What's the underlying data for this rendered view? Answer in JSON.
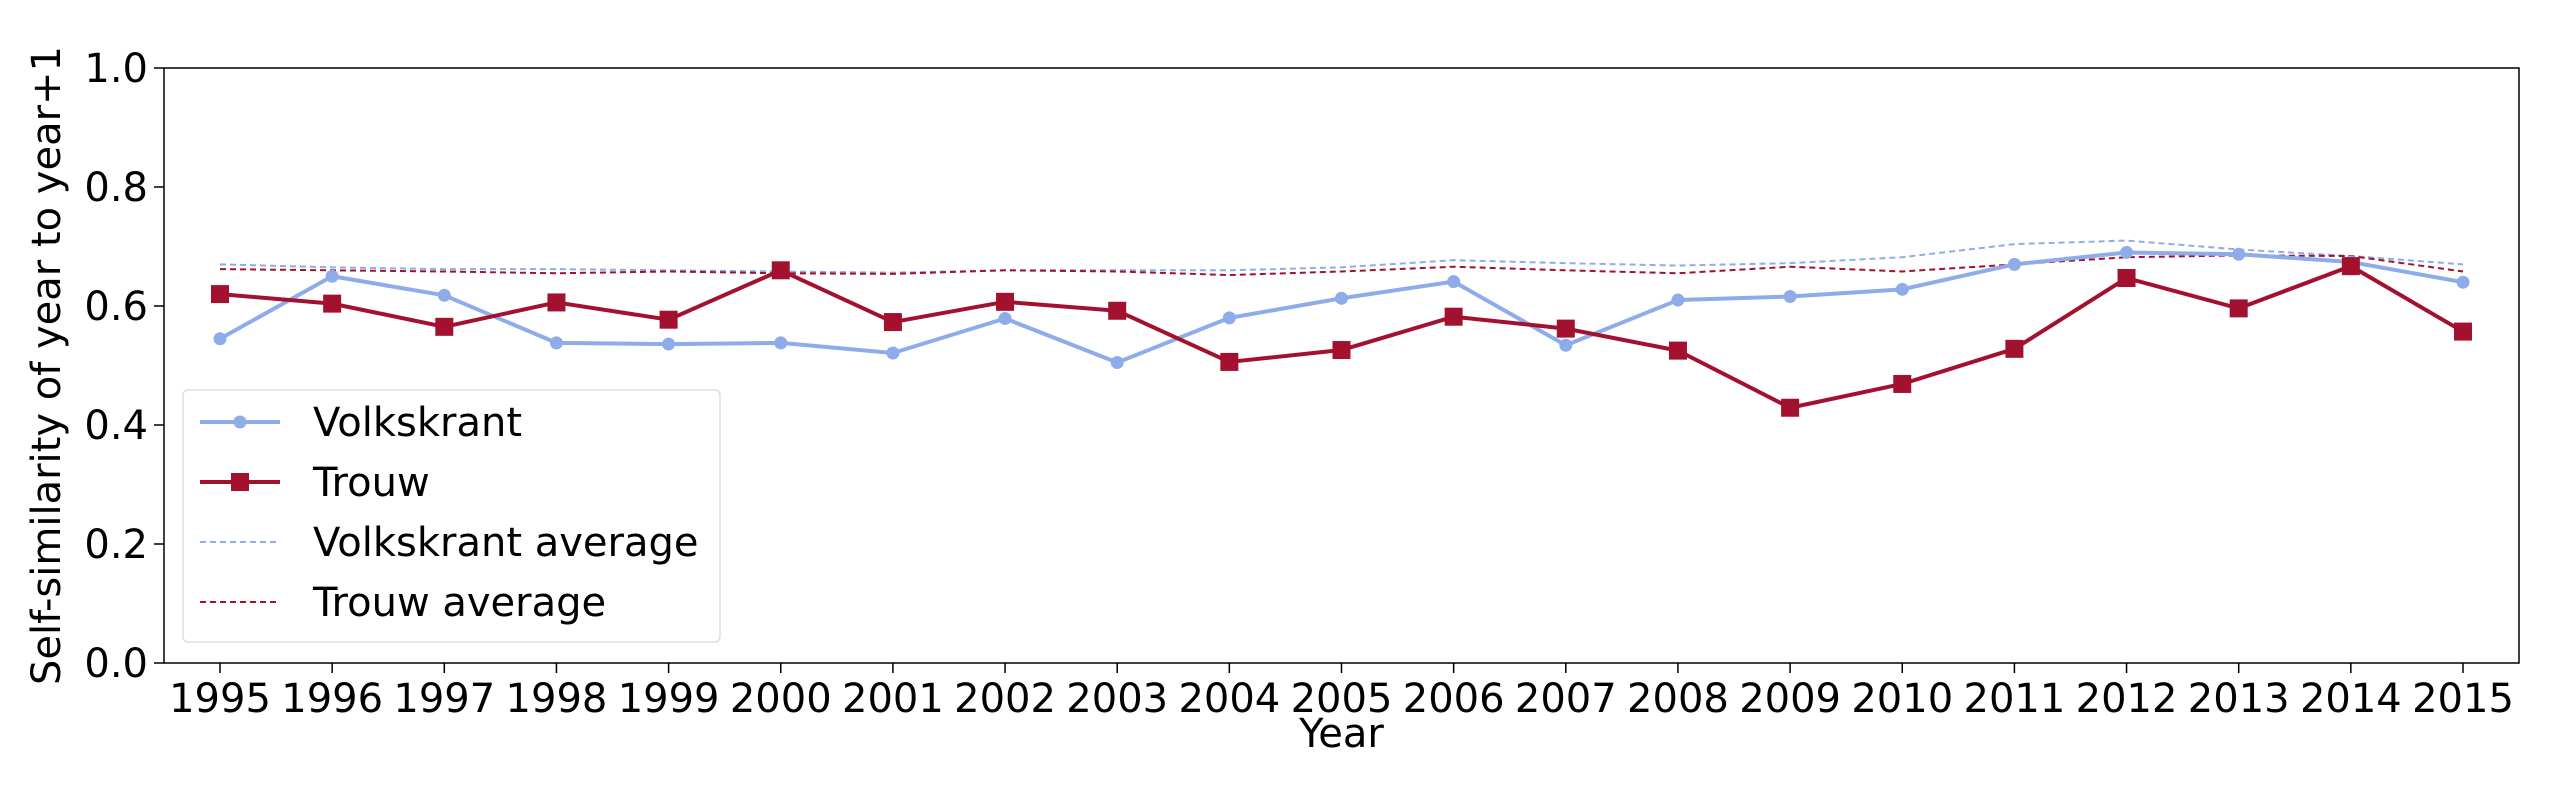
{
  "chart_data": {
    "type": "line",
    "xlabel": "Year",
    "ylabel": "Self-similarity of year to year+1",
    "x": [
      1995,
      1996,
      1997,
      1998,
      1999,
      2000,
      2001,
      2002,
      2003,
      2004,
      2005,
      2006,
      2007,
      2008,
      2009,
      2010,
      2011,
      2012,
      2013,
      2014,
      2015
    ],
    "xtick_labels": [
      "1995",
      "1996",
      "1997",
      "1998",
      "1999",
      "2000",
      "2001",
      "2002",
      "2003",
      "2004",
      "2005",
      "2006",
      "2007",
      "2008",
      "2009",
      "2010",
      "2011",
      "2012",
      "2013",
      "2014",
      "2015"
    ],
    "ylim": [
      0.0,
      1.0
    ],
    "yticks": [
      0.0,
      0.2,
      0.4,
      0.6,
      0.8,
      1.0
    ],
    "ytick_labels": [
      "0.0",
      "0.2",
      "0.4",
      "0.6",
      "0.8",
      "1.0"
    ],
    "grid": false,
    "legend_position": "lower-left",
    "series": [
      {
        "name": "Volkskrant",
        "color": "#8eacea",
        "marker": "circle",
        "line_style": "solid",
        "values": [
          0.545,
          0.65,
          0.618,
          0.538,
          0.536,
          0.538,
          0.521,
          0.579,
          0.505,
          0.58,
          0.613,
          0.641,
          0.534,
          0.61,
          0.616,
          0.628,
          0.67,
          0.69,
          0.687,
          0.674,
          0.64
        ]
      },
      {
        "name": "Trouw",
        "color": "#a3112f",
        "marker": "square",
        "line_style": "solid",
        "values": [
          0.62,
          0.604,
          0.565,
          0.606,
          0.577,
          0.66,
          0.573,
          0.607,
          0.592,
          0.506,
          0.526,
          0.582,
          0.562,
          0.525,
          0.429,
          0.469,
          0.528,
          0.647,
          0.596,
          0.667,
          0.557
        ]
      },
      {
        "name": "Volkskrant average",
        "color": "#8eacea",
        "marker": "none",
        "line_style": "dashed",
        "values": [
          0.67,
          0.665,
          0.662,
          0.662,
          0.66,
          0.658,
          0.656,
          0.66,
          0.66,
          0.66,
          0.665,
          0.677,
          0.672,
          0.668,
          0.672,
          0.682,
          0.704,
          0.71,
          0.695,
          0.684,
          0.67
        ]
      },
      {
        "name": "Trouw average",
        "color": "#a3112f",
        "marker": "none",
        "line_style": "dashed",
        "values": [
          0.662,
          0.66,
          0.658,
          0.655,
          0.658,
          0.655,
          0.654,
          0.66,
          0.658,
          0.652,
          0.658,
          0.666,
          0.66,
          0.655,
          0.666,
          0.658,
          0.67,
          0.682,
          0.685,
          0.684,
          0.658
        ]
      }
    ]
  }
}
